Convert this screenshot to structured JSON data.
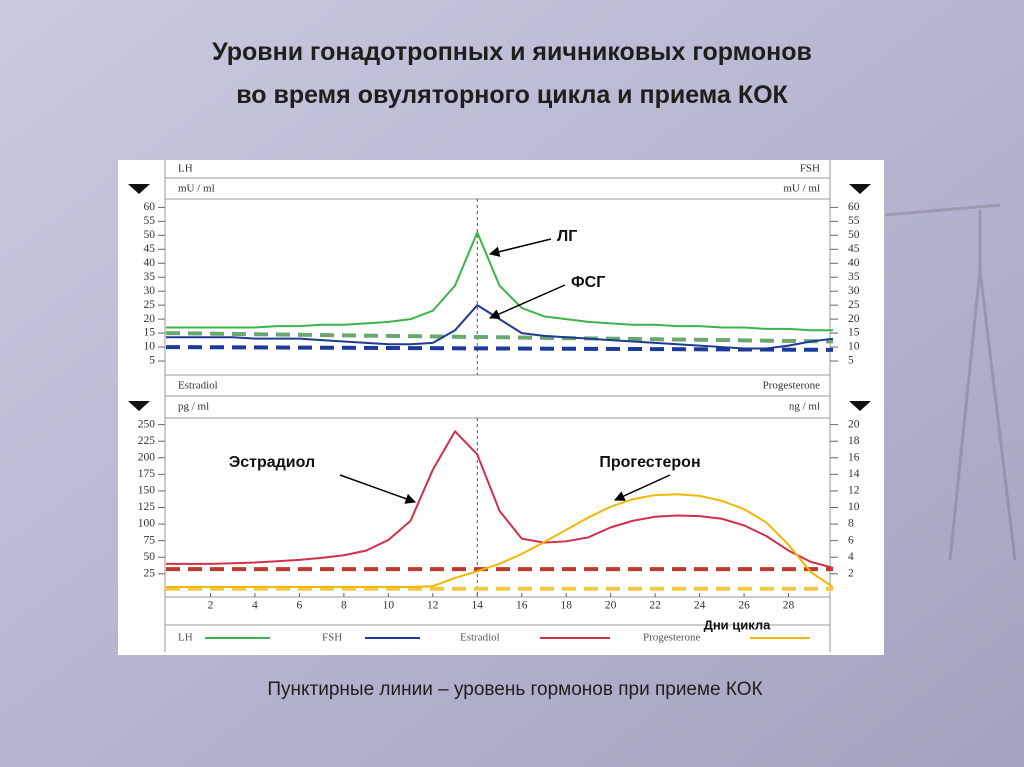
{
  "title": [
    "Уровни гонадотропных и яичниковых гормонов",
    "во время овуляторного  цикла и приема КОК"
  ],
  "caption": "Пунктирные линии – уровень гормонов при приеме КОК",
  "chart_data": [
    {
      "type": "line",
      "header_left": "LH",
      "header_right": "FSH",
      "ylabel": "mU / ml",
      "y2label": "mU / ml",
      "xlim": [
        0,
        30
      ],
      "ylim": [
        0,
        63
      ],
      "yticks": [
        5,
        10,
        15,
        20,
        25,
        30,
        35,
        40,
        45,
        50,
        55,
        60
      ],
      "y2lim": [
        0,
        63
      ],
      "y2ticks": [
        5,
        10,
        15,
        20,
        25,
        30,
        35,
        40,
        45,
        50,
        55,
        60
      ],
      "x": [
        0,
        1,
        2,
        3,
        4,
        5,
        6,
        7,
        8,
        9,
        10,
        11,
        12,
        13,
        14,
        15,
        16,
        17,
        18,
        19,
        20,
        21,
        22,
        23,
        24,
        25,
        26,
        27,
        28,
        29,
        30
      ],
      "series": [
        {
          "name": "LH",
          "color": "#3cb44b",
          "values": [
            17,
            17,
            17,
            17,
            17,
            17.5,
            17.5,
            18,
            18,
            18.5,
            19,
            20,
            23,
            32,
            51,
            32,
            24,
            21,
            20,
            19,
            18.5,
            18,
            18,
            17.5,
            17.5,
            17,
            17,
            16.5,
            16.5,
            16,
            16
          ]
        },
        {
          "name": "FSH",
          "color": "#1f3a93",
          "values": [
            13.5,
            13.5,
            13.5,
            13.5,
            13,
            13,
            13,
            12.5,
            12,
            11.5,
            11,
            11,
            11.5,
            16,
            25,
            20,
            15,
            14,
            13.5,
            13,
            12.5,
            12,
            11.5,
            11,
            10.5,
            10,
            9.5,
            9.5,
            10.5,
            12,
            13
          ]
        }
      ],
      "dashed_lines": [
        {
          "color": "#6aa872",
          "x": [
            0,
            30
          ],
          "values": [
            15,
            12
          ]
        },
        {
          "color": "#1d3b9a",
          "x": [
            0,
            30
          ],
          "values": [
            10,
            9
          ]
        }
      ],
      "vline": 14,
      "annotations": [
        "ЛГ",
        "ФСГ"
      ]
    },
    {
      "type": "line",
      "header_left": "Estradiol",
      "header_right": "Progesterone",
      "ylabel": "pg / ml",
      "y2label": "ng / ml",
      "xlim": [
        0,
        30
      ],
      "xticks": [
        2,
        4,
        6,
        8,
        10,
        12,
        14,
        16,
        18,
        20,
        22,
        24,
        26,
        28
      ],
      "xlabel": "Дни цикла",
      "ylim": [
        -10,
        260
      ],
      "yticks": [
        25,
        50,
        75,
        100,
        125,
        150,
        175,
        200,
        225,
        250
      ],
      "y2lim": [
        -0.8,
        20.8
      ],
      "y2ticks": [
        2,
        4,
        6,
        8,
        10,
        12,
        14,
        16,
        18,
        20
      ],
      "x": [
        0,
        1,
        2,
        3,
        4,
        5,
        6,
        7,
        8,
        9,
        10,
        11,
        12,
        13,
        14,
        15,
        16,
        17,
        18,
        19,
        20,
        21,
        22,
        23,
        24,
        25,
        26,
        27,
        28,
        29,
        30
      ],
      "series": [
        {
          "name": "Estradiol",
          "color": "#d0304a",
          "values": [
            40,
            40,
            40,
            41,
            42,
            44,
            46,
            49,
            53,
            60,
            76,
            105,
            182,
            240,
            205,
            120,
            78,
            72,
            74,
            80,
            95,
            105,
            111,
            113,
            112,
            108,
            98,
            82,
            60,
            43,
            34
          ]
        },
        {
          "name": "Progesterone",
          "color": "#f2b705",
          "axis": "y2",
          "values": [
            0.4,
            0.4,
            0.4,
            0.4,
            0.4,
            0.4,
            0.4,
            0.4,
            0.4,
            0.4,
            0.4,
            0.4,
            0.5,
            1.5,
            2.3,
            3.2,
            4.4,
            5.8,
            7.3,
            8.8,
            10.1,
            11,
            11.5,
            11.6,
            11.4,
            10.8,
            9.8,
            8.2,
            5.5,
            2.2,
            0.4
          ]
        }
      ],
      "dashed_lines": [
        {
          "color": "#c0392b",
          "x": [
            0,
            30
          ],
          "values": [
            32,
            32
          ]
        },
        {
          "color": "#f5c842",
          "axis": "y2",
          "x": [
            0,
            30
          ],
          "values": [
            0.2,
            0.2
          ]
        }
      ],
      "vline": 14,
      "annotations": [
        "Эстрадиол",
        "Прогестерон"
      ]
    }
  ]
}
